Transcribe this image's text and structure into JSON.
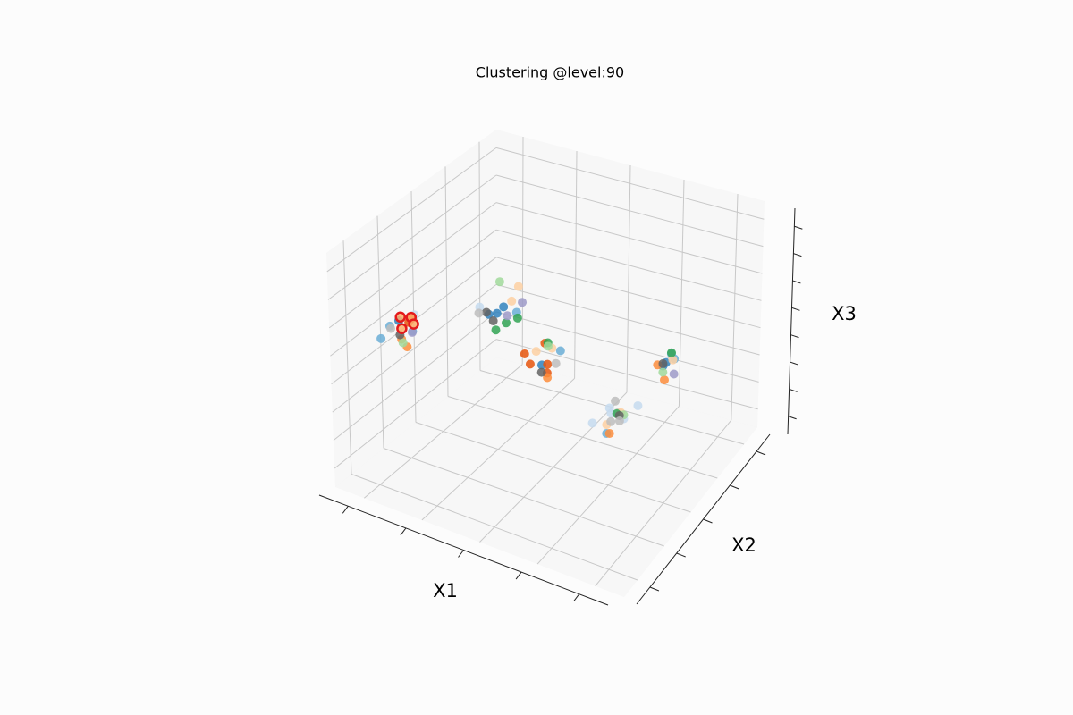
{
  "chart_data": {
    "type": "scatter3d",
    "title": "Clustering @level:90",
    "x_label": "X1",
    "y_label": "X2",
    "z_label": "X3",
    "xlim": [
      0,
      1
    ],
    "ylim": [
      0,
      1
    ],
    "zlim": [
      0,
      1
    ],
    "xticks": [
      0.1,
      0.3,
      0.5,
      0.7,
      0.9
    ],
    "yticks": [
      0.1,
      0.3,
      0.5,
      0.7,
      0.9
    ],
    "zticks": [
      0.08,
      0.2,
      0.32,
      0.44,
      0.56,
      0.68,
      0.8,
      0.92
    ],
    "grid": true,
    "series": [
      {
        "color": "#3182bd",
        "x": [
          0.31,
          0.28,
          0.83,
          0.1,
          0.5,
          0.86,
          0.32
        ],
        "y": [
          0.52,
          0.48,
          0.62,
          0.24,
          0.42,
          0.58,
          0.46
        ],
        "z": [
          0.6,
          0.58,
          0.47,
          0.62,
          0.48,
          0.52,
          0.61
        ]
      },
      {
        "color": "#6baed6",
        "x": [
          0.08,
          0.13,
          0.34,
          0.78,
          0.84,
          0.55,
          0.06,
          0.88
        ],
        "y": [
          0.22,
          0.27,
          0.55,
          0.32,
          0.66,
          0.45,
          0.2,
          0.6
        ],
        "z": [
          0.6,
          0.57,
          0.57,
          0.36,
          0.5,
          0.54,
          0.55,
          0.53
        ]
      },
      {
        "color": "#c6dbef",
        "x": [
          0.12,
          0.76,
          0.79,
          0.82,
          0.27,
          0.85,
          0.74
        ],
        "y": [
          0.3,
          0.38,
          0.33,
          0.36,
          0.44,
          0.4,
          0.3
        ],
        "z": [
          0.62,
          0.42,
          0.44,
          0.41,
          0.63,
          0.45,
          0.4
        ]
      },
      {
        "color": "#e6550d",
        "x": [
          0.48,
          0.52,
          0.45,
          0.13,
          0.1,
          0.55,
          0.5
        ],
        "y": [
          0.38,
          0.42,
          0.4,
          0.27,
          0.3,
          0.36,
          0.44
        ],
        "z": [
          0.5,
          0.49,
          0.52,
          0.63,
          0.58,
          0.5,
          0.56
        ]
      },
      {
        "color": "#fd8d3c",
        "x": [
          0.15,
          0.83,
          0.8,
          0.53,
          0.12,
          0.87
        ],
        "y": [
          0.2,
          0.58,
          0.3,
          0.4,
          0.22,
          0.55
        ],
        "z": [
          0.55,
          0.5,
          0.38,
          0.45,
          0.56,
          0.47
        ]
      },
      {
        "color": "#fdd0a2",
        "x": [
          0.35,
          0.52,
          0.48,
          0.79,
          0.86,
          0.33,
          0.77
        ],
        "y": [
          0.5,
          0.45,
          0.42,
          0.4,
          0.63,
          0.58,
          0.34
        ],
        "z": [
          0.65,
          0.54,
          0.53,
          0.4,
          0.5,
          0.66,
          0.38
        ]
      },
      {
        "color": "#31a354",
        "x": [
          0.33,
          0.36,
          0.31,
          0.5,
          0.8,
          0.85
        ],
        "y": [
          0.5,
          0.52,
          0.47,
          0.46,
          0.35,
          0.64
        ],
        "z": [
          0.55,
          0.57,
          0.53,
          0.55,
          0.43,
          0.52
        ]
      },
      {
        "color": "#a1d99b",
        "x": [
          0.28,
          0.81,
          0.09,
          0.84,
          0.49
        ],
        "y": [
          0.55,
          0.38,
          0.28,
          0.6,
          0.48
        ],
        "z": [
          0.68,
          0.41,
          0.5,
          0.46,
          0.52
        ]
      },
      {
        "color": "#9e9ac8",
        "x": [
          0.36,
          0.14,
          0.87,
          0.34
        ],
        "y": [
          0.55,
          0.25,
          0.62,
          0.49
        ],
        "z": [
          0.62,
          0.58,
          0.45,
          0.59
        ]
      },
      {
        "color": "#636363",
        "x": [
          0.29,
          0.26,
          0.08,
          0.52,
          0.83,
          0.8
        ],
        "y": [
          0.49,
          0.5,
          0.28,
          0.38,
          0.62,
          0.37
        ],
        "z": [
          0.55,
          0.57,
          0.53,
          0.48,
          0.48,
          0.41
        ]
      },
      {
        "color": "#bdbdbd",
        "x": [
          0.06,
          0.78,
          0.82,
          0.77,
          0.56,
          0.25
        ],
        "y": [
          0.26,
          0.35,
          0.33,
          0.4,
          0.4,
          0.47
        ],
        "z": [
          0.56,
          0.39,
          0.42,
          0.44,
          0.52,
          0.58
        ]
      },
      {
        "color": "#fdae6b",
        "edgecolor": "#e41a1c",
        "x": [
          0.1,
          0.12,
          0.14,
          0.11
        ],
        "y": [
          0.25,
          0.28,
          0.26,
          0.24
        ],
        "z": [
          0.63,
          0.62,
          0.61,
          0.59
        ]
      }
    ]
  }
}
